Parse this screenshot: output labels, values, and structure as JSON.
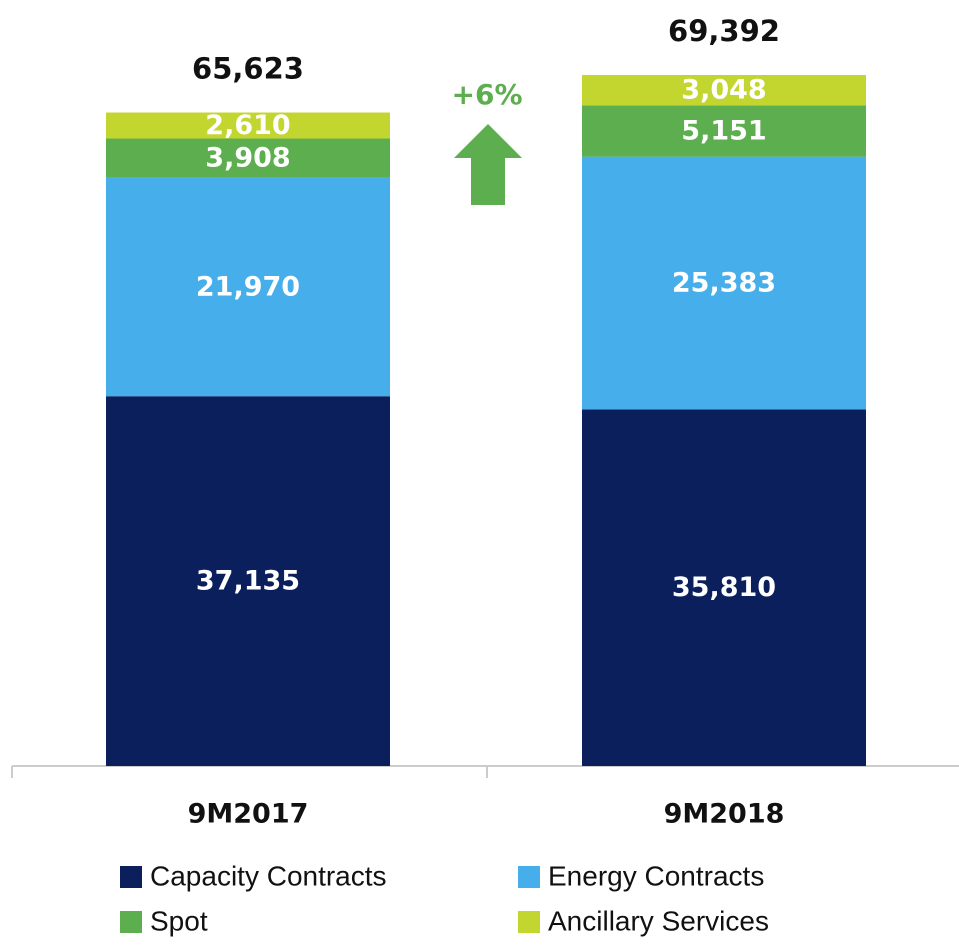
{
  "chart_data": {
    "type": "stacked_bar",
    "categories": [
      "9M2017",
      "9M2018"
    ],
    "series": [
      {
        "name": "Capacity Contracts",
        "color": "#0b1f5c",
        "values": [
          37135,
          35810
        ],
        "value_labels": [
          "37,135",
          "35,810"
        ]
      },
      {
        "name": "Energy Contracts",
        "color": "#46aeea",
        "values": [
          21970,
          25383
        ],
        "value_labels": [
          "21,970",
          "25,383"
        ]
      },
      {
        "name": "Spot",
        "color": "#5cae4e",
        "values": [
          3908,
          5151
        ],
        "value_labels": [
          "3,908",
          "5,151"
        ]
      },
      {
        "name": "Ancillary Services",
        "color": "#c3d52f",
        "values": [
          2610,
          3048
        ],
        "value_labels": [
          "2,610",
          "3,048"
        ]
      }
    ],
    "totals": [
      65623,
      69392
    ],
    "total_labels": [
      "65,623",
      "69,392"
    ],
    "annotation": "+6%",
    "annotation_color": "#5cae4e"
  }
}
